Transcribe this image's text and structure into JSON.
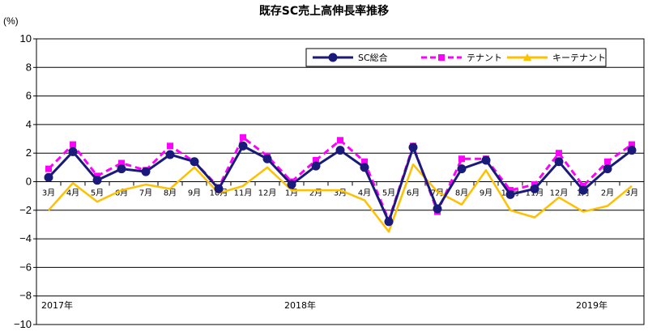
{
  "chart_data": {
    "type": "line",
    "title": "既存SC売上高伸長率推移",
    "unit_label": "(%)",
    "ylim": [
      -10,
      10
    ],
    "y_ticks": [
      "10",
      "8",
      "6",
      "4",
      "2",
      "0",
      "−2",
      "−4",
      "−6",
      "−8",
      "−10"
    ],
    "y_tick_values": [
      10,
      8,
      6,
      4,
      2,
      0,
      -2,
      -4,
      -6,
      -8,
      -10
    ],
    "categories": [
      "3月",
      "4月",
      "5月",
      "6月",
      "7月",
      "8月",
      "9月",
      "10月",
      "11月",
      "12月",
      "1月",
      "2月",
      "3月",
      "4月",
      "5月",
      "6月",
      "7月",
      "8月",
      "9月",
      "10月",
      "11月",
      "12月",
      "1月",
      "2月",
      "3月"
    ],
    "year_labels": [
      {
        "label": "2017年",
        "index": 0
      },
      {
        "label": "2018年",
        "index": 10
      },
      {
        "label": "2019年",
        "index": 22
      }
    ],
    "grid": "horizontal",
    "legend_placement": "top-right",
    "series": [
      {
        "name": "SC総合",
        "color": "#1a1a7a",
        "marker": "circle",
        "dash": "solid",
        "values": [
          0.3,
          2.1,
          0.1,
          0.9,
          0.7,
          1.9,
          1.4,
          -0.5,
          2.5,
          1.6,
          -0.2,
          1.1,
          2.2,
          1.0,
          -2.8,
          2.4,
          -1.9,
          0.9,
          1.5,
          -0.9,
          -0.5,
          1.4,
          -0.6,
          0.9,
          2.2
        ]
      },
      {
        "name": "テナント",
        "color": "#ff00ff",
        "marker": "square",
        "dash": "dashed",
        "values": [
          0.9,
          2.6,
          0.4,
          1.3,
          0.8,
          2.5,
          1.4,
          -0.4,
          3.1,
          1.8,
          0.0,
          1.5,
          2.9,
          1.4,
          -2.7,
          2.5,
          -2.1,
          1.6,
          1.6,
          -0.6,
          -0.2,
          2.0,
          -0.3,
          1.4,
          2.6
        ]
      },
      {
        "name": "キーテナント",
        "color": "#ffc000",
        "marker": "triangle",
        "dash": "solid",
        "values": [
          -2.0,
          -0.1,
          -1.4,
          -0.6,
          -0.2,
          -0.5,
          1.0,
          -0.8,
          -0.3,
          1.0,
          -0.6,
          -0.6,
          -0.6,
          -1.3,
          -3.5,
          1.2,
          -0.7,
          -1.6,
          0.8,
          -2.0,
          -2.5,
          -1.1,
          -2.1,
          -1.7,
          -0.3
        ]
      }
    ]
  }
}
